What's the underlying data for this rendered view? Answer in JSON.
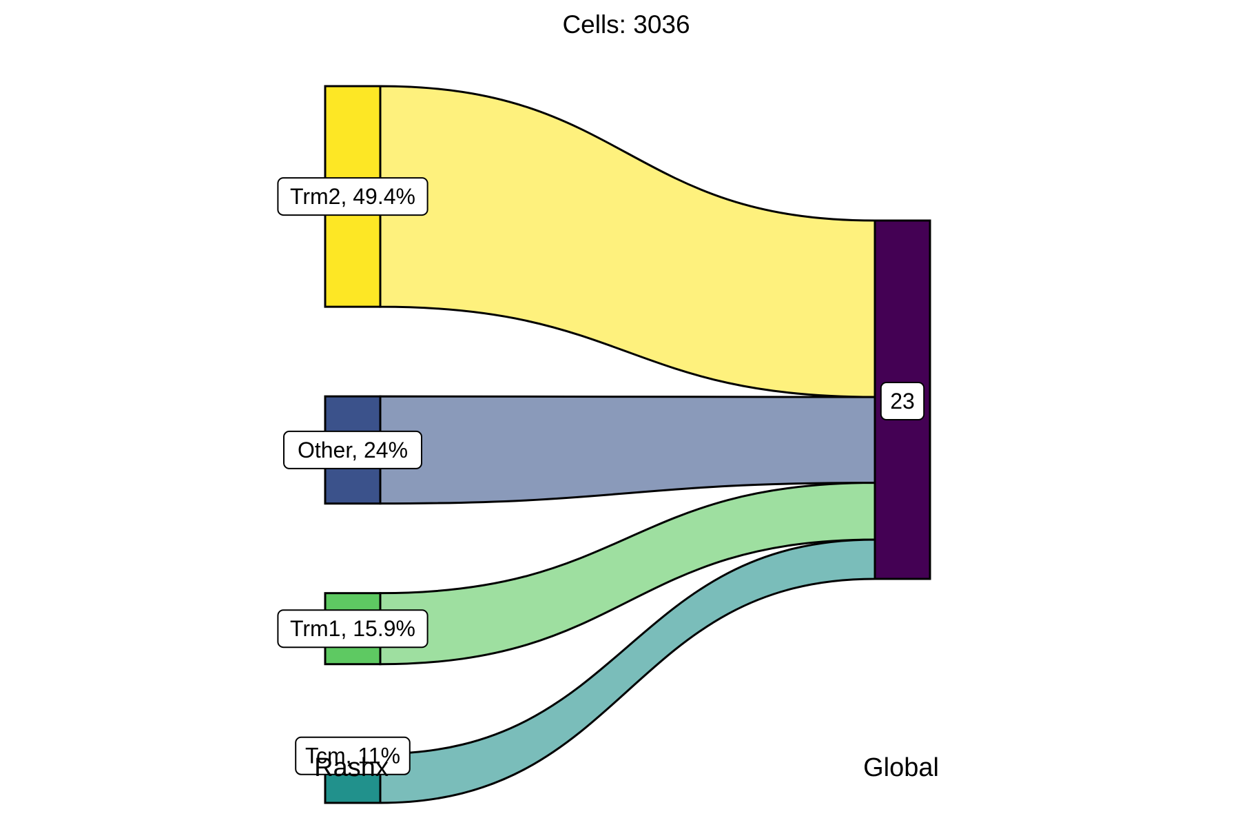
{
  "title": "Cells:  3036",
  "axes": {
    "left": "Rashx",
    "right": "Global"
  },
  "chart_data": {
    "type": "sankey",
    "title": "Cells:  3036",
    "total_cells": 3036,
    "axes": [
      "Rashx",
      "Global"
    ],
    "nodes_left": [
      {
        "name": "Trm2",
        "percent": 49.4,
        "label": "Trm2, 49.4%",
        "color": "#FDE725",
        "flow_color": "#FEF17D"
      },
      {
        "name": "Other",
        "percent": 24,
        "label": "Other, 24%",
        "color": "#3B528B",
        "flow_color": "#8A9ABA"
      },
      {
        "name": "Trm1",
        "percent": 15.9,
        "label": "Trm1, 15.9%",
        "color": "#5EC962",
        "flow_color": "#9EDFA0"
      },
      {
        "name": "Tcm",
        "percent": 11,
        "label": "Tcm, 11%",
        "color": "#21918C",
        "flow_color": "#7ABDBA"
      }
    ],
    "nodes_right": [
      {
        "name": "23",
        "label": "23",
        "color": "#440154"
      }
    ],
    "flows": [
      {
        "from": "Trm2",
        "to": "23",
        "percent": 49.4
      },
      {
        "from": "Other",
        "to": "23",
        "percent": 24
      },
      {
        "from": "Trm1",
        "to": "23",
        "percent": 15.9
      },
      {
        "from": "Tcm",
        "to": "23",
        "percent": 11
      }
    ]
  }
}
